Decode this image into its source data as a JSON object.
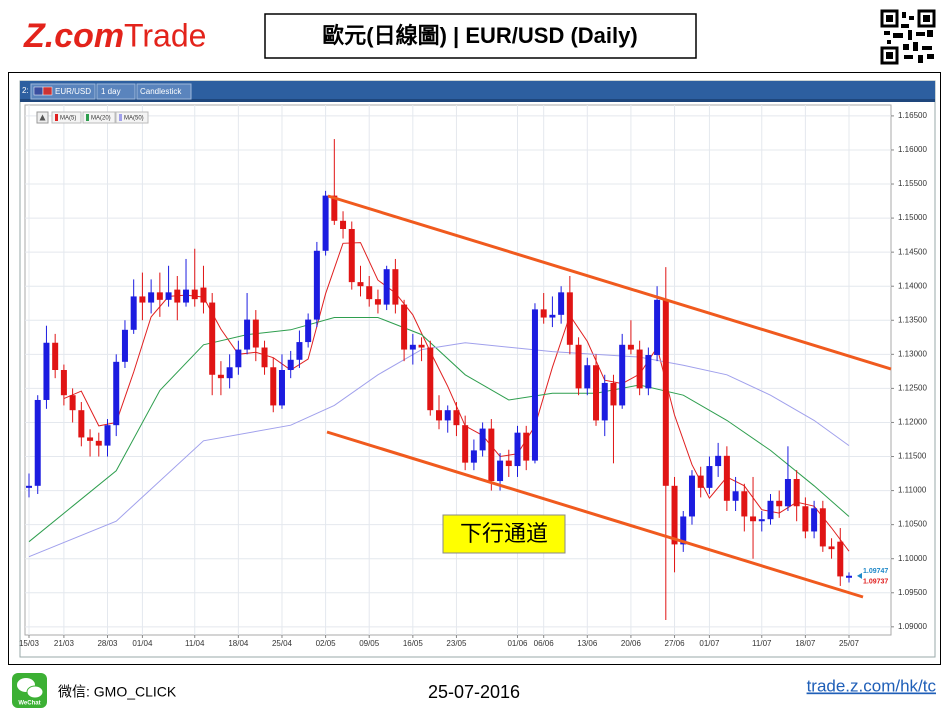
{
  "header": {
    "logo_brand": "Z.com",
    "logo_suffix": "Trade",
    "title": "歐元(日線圖) | EUR/USD (Daily)"
  },
  "chart_data": {
    "type": "candlestick",
    "toolbar": {
      "pane": "2:",
      "symbol": "EUR/USD",
      "interval": "1 day",
      "style": "Candlestick"
    },
    "categories": [
      "15/03",
      null,
      null,
      null,
      "21/03",
      null,
      null,
      null,
      null,
      "28/03",
      null,
      null,
      null,
      "01/04",
      null,
      null,
      null,
      null,
      null,
      "11/04",
      null,
      null,
      null,
      null,
      "18/04",
      null,
      null,
      null,
      null,
      "25/04",
      null,
      null,
      null,
      null,
      "02/05",
      null,
      null,
      null,
      null,
      "09/05",
      null,
      null,
      null,
      null,
      "16/05",
      null,
      null,
      null,
      null,
      "23/05",
      null,
      null,
      null,
      null,
      null,
      null,
      "01/06",
      null,
      null,
      "06/06",
      null,
      null,
      null,
      null,
      "13/06",
      null,
      null,
      null,
      null,
      "20/06",
      null,
      null,
      null,
      null,
      "27/06",
      null,
      null,
      null,
      "01/07",
      null,
      null,
      null,
      null,
      null,
      "11/07",
      null,
      null,
      null,
      null,
      "18/07",
      null,
      null,
      null,
      null,
      "25/07"
    ],
    "open": [
      1.1104,
      1.1107,
      1.1233,
      1.1317,
      1.1277,
      1.124,
      1.1218,
      1.1178,
      1.1173,
      1.1166,
      1.1196,
      1.1289,
      1.1336,
      1.1385,
      1.1376,
      1.1391,
      1.138,
      1.1395,
      1.1376,
      1.1395,
      1.1398,
      1.1376,
      1.127,
      1.1265,
      1.1281,
      1.1307,
      1.1351,
      1.131,
      1.1281,
      1.1225,
      1.1277,
      1.1292,
      1.1318,
      1.1351,
      1.1452,
      1.1533,
      1.1496,
      1.1484,
      1.1406,
      1.14,
      1.1381,
      1.1373,
      1.1425,
      1.1373,
      1.1307,
      1.1314,
      1.131,
      1.1218,
      1.1203,
      1.1218,
      1.1196,
      1.1141,
      1.1159,
      1.1191,
      1.1114,
      1.1144,
      1.1136,
      1.1185,
      1.1144,
      1.1366,
      1.1354,
      1.1358,
      1.1391,
      1.1314,
      1.125,
      1.1284,
      1.1203,
      1.1258,
      1.1225,
      1.1314,
      1.1307,
      1.125,
      1.1299,
      1.138,
      1.1107,
      1.1021,
      1.1062,
      1.1122,
      1.1104,
      1.1136,
      1.1151,
      1.1085,
      1.1099,
      1.1062,
      1.1055,
      1.1058,
      1.1085,
      1.1077,
      1.1117,
      1.1077,
      1.104,
      1.1074,
      1.1018,
      1.1025,
      1.0972
    ],
    "high": [
      1.1125,
      1.124,
      1.1342,
      1.133,
      1.1285,
      1.125,
      1.123,
      1.119,
      1.1185,
      1.1205,
      1.13,
      1.135,
      1.141,
      1.142,
      1.141,
      1.142,
      1.143,
      1.1415,
      1.144,
      1.1455,
      1.143,
      1.139,
      1.129,
      1.13,
      1.132,
      1.139,
      1.1365,
      1.132,
      1.1295,
      1.13,
      1.1305,
      1.1335,
      1.136,
      1.1465,
      1.154,
      1.1616,
      1.151,
      1.1495,
      1.143,
      1.1415,
      1.1395,
      1.143,
      1.144,
      1.138,
      1.133,
      1.1325,
      1.132,
      1.124,
      1.1225,
      1.123,
      1.121,
      1.1175,
      1.12,
      1.1205,
      1.1155,
      1.116,
      1.1195,
      1.1195,
      1.1375,
      1.139,
      1.1385,
      1.14,
      1.1415,
      1.1325,
      1.1295,
      1.13,
      1.127,
      1.127,
      1.133,
      1.135,
      1.132,
      1.131,
      1.14,
      1.1428,
      1.112,
      1.107,
      1.113,
      1.1135,
      1.115,
      1.117,
      1.1165,
      1.112,
      1.111,
      1.112,
      1.107,
      1.1095,
      1.11,
      1.1165,
      1.113,
      1.109,
      1.1085,
      1.1085,
      1.103,
      1.1045,
      1.098
    ],
    "low": [
      1.109,
      1.1095,
      1.122,
      1.1265,
      1.1225,
      1.12,
      1.1165,
      1.115,
      1.115,
      1.115,
      1.118,
      1.128,
      1.133,
      1.135,
      1.136,
      1.1355,
      1.137,
      1.135,
      1.137,
      1.137,
      1.136,
      1.124,
      1.124,
      1.125,
      1.127,
      1.13,
      1.129,
      1.127,
      1.1215,
      1.122,
      1.1265,
      1.128,
      1.131,
      1.134,
      1.1445,
      1.149,
      1.147,
      1.1395,
      1.1385,
      1.137,
      1.136,
      1.1365,
      1.136,
      1.129,
      1.1285,
      1.129,
      1.121,
      1.119,
      1.1185,
      1.118,
      1.113,
      1.113,
      1.115,
      1.11,
      1.11,
      1.112,
      1.112,
      1.113,
      1.114,
      1.1345,
      1.134,
      1.1345,
      1.13,
      1.124,
      1.124,
      1.1195,
      1.118,
      1.114,
      1.122,
      1.13,
      1.124,
      1.124,
      1.129,
      1.091,
      1.098,
      1.101,
      1.105,
      1.109,
      1.1095,
      1.112,
      1.107,
      1.107,
      1.104,
      1.1,
      1.104,
      1.105,
      1.106,
      1.107,
      1.1055,
      1.103,
      1.103,
      1.101,
      1.1,
      1.096,
      1.0965
    ],
    "close": [
      1.1107,
      1.1233,
      1.1317,
      1.1277,
      1.124,
      1.1218,
      1.1178,
      1.1173,
      1.1166,
      1.1196,
      1.1289,
      1.1336,
      1.1385,
      1.1376,
      1.1391,
      1.138,
      1.1391,
      1.1376,
      1.1395,
      1.1381,
      1.1376,
      1.127,
      1.1265,
      1.1281,
      1.1307,
      1.1351,
      1.131,
      1.1281,
      1.1225,
      1.1277,
      1.1292,
      1.1318,
      1.1351,
      1.1452,
      1.1533,
      1.1496,
      1.1484,
      1.1406,
      1.14,
      1.1381,
      1.1373,
      1.1425,
      1.1373,
      1.1307,
      1.1314,
      1.131,
      1.1218,
      1.1203,
      1.1218,
      1.1196,
      1.1141,
      1.1159,
      1.1191,
      1.1114,
      1.1144,
      1.1136,
      1.1185,
      1.1144,
      1.1366,
      1.1354,
      1.1358,
      1.1391,
      1.1314,
      1.125,
      1.1284,
      1.1203,
      1.1258,
      1.1225,
      1.1314,
      1.1307,
      1.125,
      1.1299,
      1.138,
      1.1107,
      1.1021,
      1.1062,
      1.1122,
      1.1104,
      1.1136,
      1.1151,
      1.1085,
      1.1099,
      1.1062,
      1.1055,
      1.1058,
      1.1085,
      1.1077,
      1.1117,
      1.1077,
      1.104,
      1.1074,
      1.1018,
      1.1014,
      1.0974,
      1.0975
    ],
    "up_color": "#1c1ce0",
    "down_color": "#e01414",
    "series": [
      {
        "name": "MA(5)",
        "color": "#e02020",
        "x": [
          4,
          6,
          8,
          10,
          12,
          14,
          16,
          18,
          20,
          22,
          24,
          26,
          28,
          30,
          32,
          34,
          36,
          38,
          40,
          42,
          44,
          46,
          48,
          50,
          52,
          54,
          56,
          58,
          60,
          62,
          64,
          66,
          68,
          70,
          72,
          74,
          76,
          78,
          80,
          82,
          84,
          86,
          88,
          90,
          92,
          94
        ],
        "values": [
          1.1235,
          1.1246,
          1.1195,
          1.12,
          1.1274,
          1.1355,
          1.1385,
          1.1387,
          1.1384,
          1.1337,
          1.13,
          1.1303,
          1.1295,
          1.1277,
          1.1293,
          1.1389,
          1.1463,
          1.1464,
          1.1409,
          1.139,
          1.1358,
          1.1304,
          1.1253,
          1.1195,
          1.1181,
          1.115,
          1.1154,
          1.1195,
          1.1281,
          1.1357,
          1.1319,
          1.1262,
          1.1257,
          1.1271,
          1.131,
          1.1211,
          1.1138,
          1.1089,
          1.112,
          1.1107,
          1.1072,
          1.1067,
          1.1083,
          1.1077,
          1.1045,
          1.1011
        ]
      },
      {
        "name": "MA(20)",
        "color": "#2e9e4e",
        "x": [
          0,
          5,
          10,
          15,
          20,
          25,
          30,
          35,
          40,
          45,
          50,
          55,
          60,
          65,
          70,
          75,
          80,
          85,
          90,
          94
        ],
        "values": [
          1.1025,
          1.1077,
          1.1129,
          1.1247,
          1.1314,
          1.1329,
          1.1336,
          1.1354,
          1.1354,
          1.1329,
          1.127,
          1.1233,
          1.1243,
          1.1243,
          1.1255,
          1.124,
          1.1203,
          1.1159,
          1.1107,
          1.1062
        ]
      },
      {
        "name": "MA(50)",
        "color": "#a0a0ec",
        "x": [
          0,
          10,
          20,
          30,
          35,
          40,
          45,
          50,
          60,
          70,
          75,
          80,
          85,
          90,
          94
        ],
        "values": [
          1.1003,
          1.1055,
          1.1173,
          1.1196,
          1.1225,
          1.127,
          1.1307,
          1.1317,
          1.1304,
          1.1296,
          1.1284,
          1.127,
          1.124,
          1.1203,
          1.1166
        ]
      }
    ],
    "ylim": [
      1.0888,
      1.1666
    ],
    "yticks": [
      {
        "value": 1.09,
        "label": "1.09000"
      },
      {
        "value": 1.095,
        "label": "1.09500"
      },
      {
        "value": 1.1,
        "label": "1.10000"
      },
      {
        "value": 1.105,
        "label": "1.10500"
      },
      {
        "value": 1.11,
        "label": "1.11000"
      },
      {
        "value": 1.115,
        "label": "1.11500"
      },
      {
        "value": 1.12,
        "label": "1.12000"
      },
      {
        "value": 1.125,
        "label": "1.12500"
      },
      {
        "value": 1.13,
        "label": "1.13000"
      },
      {
        "value": 1.135,
        "label": "1.13500"
      },
      {
        "value": 1.14,
        "label": "1.14000"
      },
      {
        "value": 1.145,
        "label": "1.14500"
      },
      {
        "value": 1.15,
        "label": "1.15000"
      },
      {
        "value": 1.155,
        "label": "1.15500"
      },
      {
        "value": 1.16,
        "label": "1.16000"
      },
      {
        "value": 1.165,
        "label": "1.16500"
      }
    ],
    "grid": true,
    "price_markers": [
      {
        "value": 1.09747,
        "color": "#1e88c8"
      },
      {
        "value": 1.09737,
        "color": "#e02020"
      }
    ],
    "annotation": "下行通道"
  },
  "footer": {
    "wechat_label": "WeChat",
    "wechat_id": "微信: GMO_CLICK",
    "date": "25-07-2016",
    "url": "trade.z.com/hk/tc"
  }
}
